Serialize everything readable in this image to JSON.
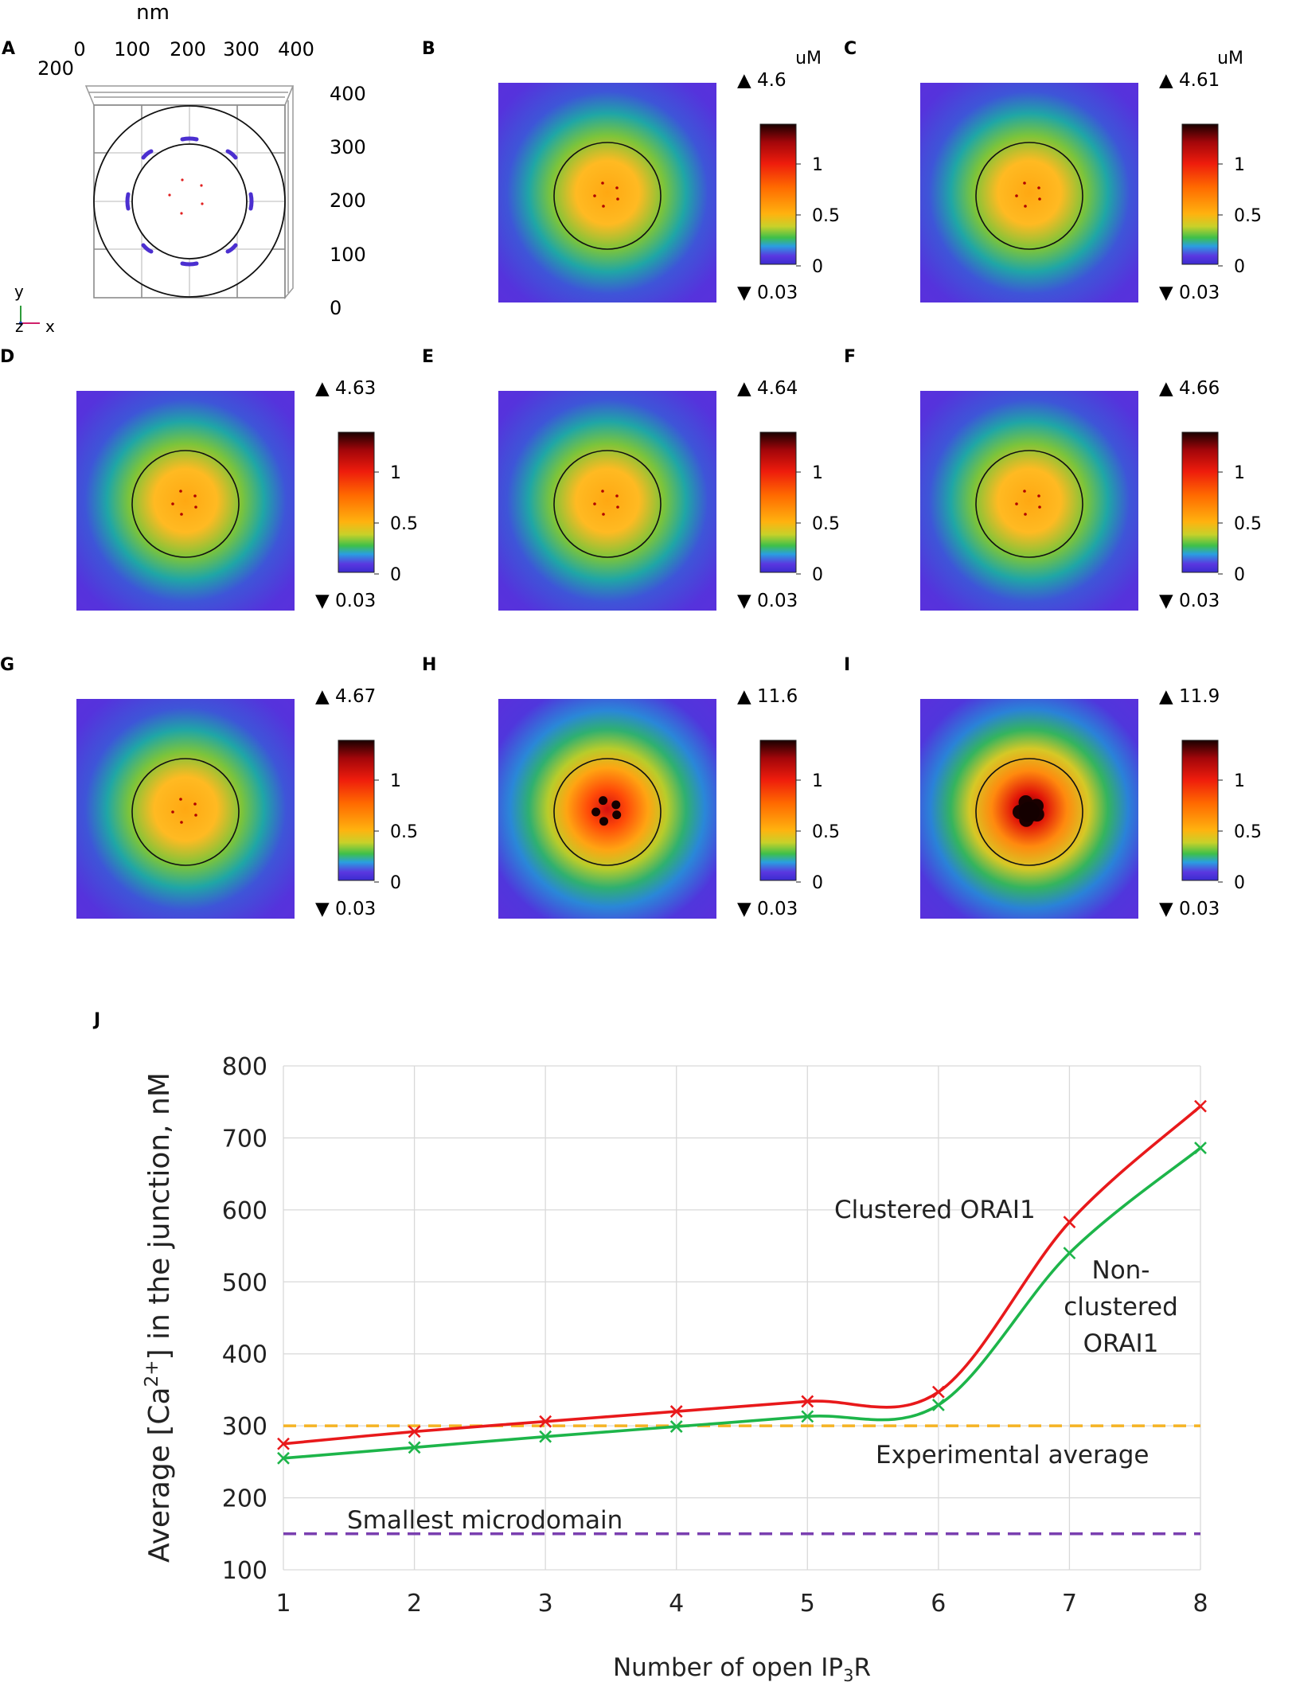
{
  "panel_a": {
    "letter": "A",
    "unit_label": "nm",
    "top_ticks": [
      "0",
      "100",
      "200",
      "300",
      "400"
    ],
    "left_tick": "200",
    "right_ticks": [
      "400",
      "300",
      "200",
      "100",
      "0"
    ],
    "axis_y": "y",
    "axis_z": "z",
    "axis_x": "x"
  },
  "heatmap_unit": "uM",
  "colorbar_ticks": [
    "1",
    "0.5",
    "0"
  ],
  "heatmaps": [
    {
      "letter": "B",
      "max": "▲ 4.6",
      "min": "▼ 0.03",
      "show_unit": true,
      "style": "center"
    },
    {
      "letter": "C",
      "max": "▲ 4.61",
      "min": "▼ 0.03",
      "show_unit": true,
      "style": "center"
    },
    {
      "letter": "D",
      "max": "▲ 4.63",
      "min": "▼ 0.03",
      "show_unit": false,
      "style": "center"
    },
    {
      "letter": "E",
      "max": "▲ 4.64",
      "min": "▼ 0.03",
      "show_unit": false,
      "style": "center"
    },
    {
      "letter": "F",
      "max": "▲ 4.66",
      "min": "▼ 0.03",
      "show_unit": false,
      "style": "center"
    },
    {
      "letter": "G",
      "max": "▲ 4.67",
      "min": "▼ 0.03",
      "show_unit": false,
      "style": "center"
    },
    {
      "letter": "H",
      "max": "▲ 11.6",
      "min": "▼ 0.03",
      "show_unit": false,
      "style": "hot"
    },
    {
      "letter": "I",
      "max": "▲ 11.9",
      "min": "▼ 0.03",
      "show_unit": false,
      "style": "hotter"
    }
  ],
  "colors": {
    "clustered": "#e8191b",
    "nonclustered": "#1db54a",
    "experimental": "#f5b324",
    "smallest": "#7a3fb0",
    "grid": "#d9d9d9"
  },
  "chart_data": {
    "letter": "J",
    "type": "line",
    "xlabel_main": "Number of open IP",
    "xlabel_sub": "3",
    "xlabel_end": "R",
    "ylabel_start": "Average [Ca",
    "ylabel_sup": "2+",
    "ylabel_end": "] in the junction, nM",
    "x": [
      1,
      2,
      3,
      4,
      5,
      6,
      7,
      8
    ],
    "x_ticks": [
      "1",
      "2",
      "3",
      "4",
      "5",
      "6",
      "7",
      "8"
    ],
    "y_ticks": [
      "100",
      "200",
      "300",
      "400",
      "500",
      "600",
      "700",
      "800"
    ],
    "ylim": [
      100,
      800
    ],
    "xlim": [
      1,
      8
    ],
    "series": [
      {
        "name": "Clustered ORAI1",
        "values": [
          275,
          292,
          306,
          320,
          334,
          347,
          583,
          744
        ]
      },
      {
        "name": "Non-clustered ORAI1",
        "values": [
          255,
          270,
          285,
          299,
          313,
          329,
          540,
          686
        ]
      }
    ],
    "label_clustered": "Clustered ORAI1",
    "label_nonclustered": [
      "Non-",
      "clustered",
      "ORAI1"
    ],
    "reference_lines": [
      {
        "name": "Experimental average",
        "value": 300
      },
      {
        "name": "Smallest microdomain",
        "value": 150
      }
    ]
  }
}
